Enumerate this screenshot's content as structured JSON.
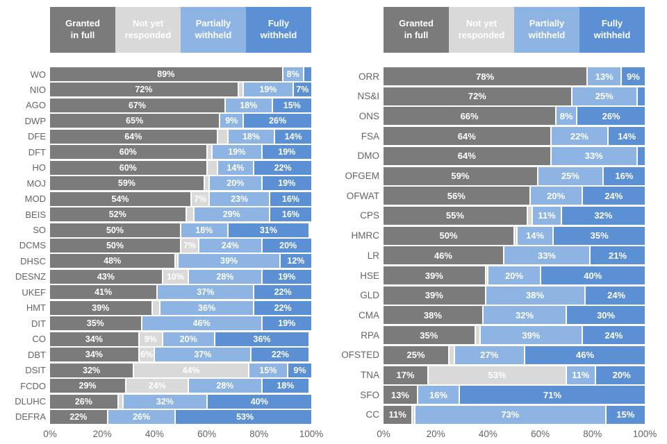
{
  "colors": {
    "granted_in_full": "#7b7b7b",
    "not_yet_responded": "#d9d9d9",
    "partially_withheld": "#8db4e2",
    "fully_withheld": "#5c90d5",
    "category_label_text": "#646464",
    "value_label_text": "#ffffff",
    "axis_text": "#646464"
  },
  "legend": {
    "items": [
      {
        "line1": "Granted",
        "line2": "in full"
      },
      {
        "line1": "Not yet",
        "line2": "responded"
      },
      {
        "line1": "Partially",
        "line2": "withheld"
      },
      {
        "line1": "Fully",
        "line2": "withheld"
      }
    ]
  },
  "axis": {
    "ticks": [
      "0%",
      "20%",
      "40%",
      "60%",
      "80%",
      "100%"
    ],
    "tick_positions": [
      0,
      20,
      40,
      60,
      80,
      100
    ]
  },
  "chart_data": [
    {
      "type": "bar",
      "stacked": true,
      "orientation": "horizontal",
      "title": "",
      "xlabel": "",
      "ylabel": "",
      "xlim": [
        0,
        100
      ],
      "x_ticks": [
        "0%",
        "20%",
        "40%",
        "60%",
        "80%",
        "100%"
      ],
      "legend_position": "top",
      "grid": false,
      "value_label_suffix": "%",
      "categories": [
        "WO",
        "NIO",
        "AGO",
        "DWP",
        "DFE",
        "DFT",
        "HO",
        "MOJ",
        "MOD",
        "BEIS",
        "SO",
        "DCMS",
        "DHSC",
        "DESNZ",
        "UKEF",
        "HMT",
        "DIT",
        "CO",
        "DBT",
        "DSIT",
        "FCDO",
        "DLUHC",
        "DEFRA"
      ],
      "series": [
        {
          "name": "Granted in full",
          "values": [
            89,
            72,
            67,
            65,
            64,
            60,
            60,
            59,
            54,
            52,
            50,
            50,
            48,
            43,
            41,
            39,
            35,
            34,
            34,
            32,
            29,
            26,
            22
          ]
        },
        {
          "name": "Not yet responded",
          "values": [
            0,
            2,
            0,
            0,
            4,
            2,
            4,
            2,
            7,
            3,
            0,
            7,
            1,
            10,
            0,
            3,
            0,
            9,
            6,
            44,
            24,
            2,
            0
          ]
        },
        {
          "name": "Partially withheld",
          "values": [
            8,
            19,
            18,
            9,
            18,
            19,
            14,
            20,
            23,
            29,
            18,
            24,
            39,
            28,
            37,
            36,
            46,
            20,
            37,
            15,
            28,
            32,
            26
          ]
        },
        {
          "name": "Fully withheld",
          "values": [
            3,
            7,
            15,
            26,
            14,
            19,
            22,
            19,
            16,
            16,
            31,
            20,
            12,
            19,
            22,
            22,
            19,
            36,
            22,
            9,
            18,
            40,
            53
          ]
        }
      ]
    },
    {
      "type": "bar",
      "stacked": true,
      "orientation": "horizontal",
      "title": "",
      "xlabel": "",
      "ylabel": "",
      "xlim": [
        0,
        100
      ],
      "x_ticks": [
        "0%",
        "20%",
        "40%",
        "60%",
        "80%",
        "100%"
      ],
      "legend_position": "top",
      "grid": false,
      "value_label_suffix": "%",
      "categories": [
        "ORR",
        "NS&I",
        "ONS",
        "FSA",
        "DMO",
        "OFGEM",
        "OFWAT",
        "CPS",
        "HMRC",
        "LR",
        "HSE",
        "GLD",
        "CMA",
        "RPA",
        "OFSTED",
        "TNA",
        "SFO",
        "CC"
      ],
      "series": [
        {
          "name": "Granted in full",
          "values": [
            78,
            72,
            66,
            64,
            64,
            59,
            56,
            55,
            50,
            46,
            39,
            39,
            38,
            35,
            25,
            17,
            13,
            11
          ]
        },
        {
          "name": "Not yet responded",
          "values": [
            0,
            0,
            0,
            0,
            0,
            0,
            0,
            2,
            1,
            0,
            1,
            0,
            0,
            2,
            2,
            53,
            0,
            1
          ]
        },
        {
          "name": "Partially withheld",
          "values": [
            13,
            25,
            8,
            22,
            33,
            25,
            20,
            11,
            14,
            33,
            20,
            38,
            32,
            39,
            27,
            11,
            16,
            73
          ]
        },
        {
          "name": "Fully withheld",
          "values": [
            9,
            3,
            26,
            14,
            3,
            16,
            24,
            32,
            35,
            21,
            40,
            24,
            30,
            24,
            46,
            20,
            71,
            15
          ]
        }
      ]
    }
  ],
  "value_label_min": 6
}
